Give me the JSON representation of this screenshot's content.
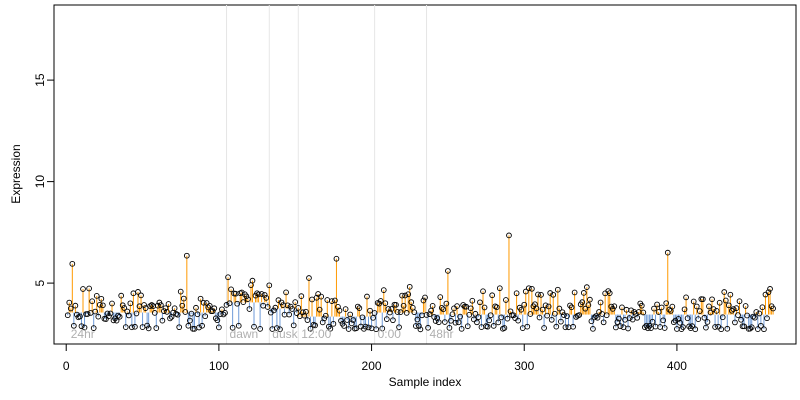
{
  "chart_data": {
    "type": "scatter",
    "xlabel": "Sample index",
    "ylabel": "Expression",
    "xlim": [
      -8,
      478
    ],
    "ylim": [
      2.0,
      18.7
    ],
    "x_ticks": [
      0,
      100,
      200,
      300,
      400
    ],
    "y_ticks": [
      5,
      10,
      15
    ],
    "colors": {
      "above": "#ff9900",
      "below": "#6f9bd8",
      "vline": "#e6e6e6",
      "condition_text": "#b0b0b0"
    },
    "conditions": [
      {
        "label": "24hr",
        "x": 1
      },
      {
        "label": "dawn",
        "x": 105
      },
      {
        "label": "dusk",
        "x": 133
      },
      {
        "label": "12:00",
        "x": 152
      },
      {
        "label": "0:00",
        "x": 202
      },
      {
        "label": "48hr",
        "x": 236
      }
    ],
    "condition_boundaries": [
      105,
      133,
      152,
      202,
      236
    ],
    "baseline_segments": [
      {
        "x_start": 1,
        "x_end": 105,
        "baseline": 3.55
      },
      {
        "x_start": 105,
        "x_end": 133,
        "baseline": 4.05
      },
      {
        "x_start": 133,
        "x_end": 152,
        "baseline": 3.75
      },
      {
        "x_start": 152,
        "x_end": 202,
        "baseline": 3.35
      },
      {
        "x_start": 202,
        "x_end": 236,
        "baseline": 3.55
      },
      {
        "x_start": 236,
        "x_end": 463,
        "baseline": 3.45
      }
    ],
    "n_points": 463,
    "approx_range": [
      2.7,
      7.4
    ],
    "highlighted_points": [
      {
        "x": 4,
        "y": 5.95
      },
      {
        "x": 79,
        "y": 6.35
      },
      {
        "x": 177,
        "y": 6.2
      },
      {
        "x": 159,
        "y": 5.25
      },
      {
        "x": 250,
        "y": 5.6
      },
      {
        "x": 290,
        "y": 7.35
      },
      {
        "x": 394,
        "y": 6.5
      },
      {
        "x": 121,
        "y": 4.9
      },
      {
        "x": 303,
        "y": 4.75
      },
      {
        "x": 341,
        "y": 4.8
      }
    ]
  }
}
